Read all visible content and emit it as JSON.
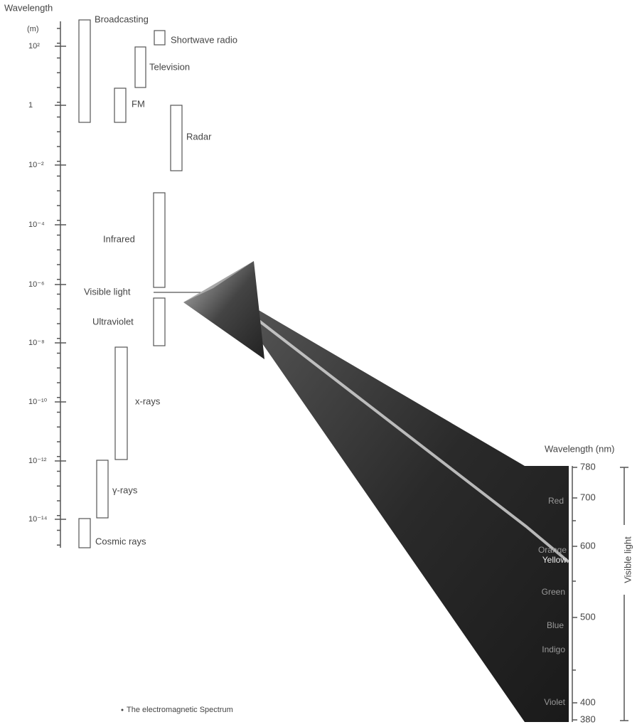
{
  "left_axis": {
    "title": "Wavelength",
    "unit": "(m)",
    "ticks": [
      "10²",
      "1",
      "10⁻²",
      "10⁻⁴",
      "10⁻⁶",
      "10⁻⁸",
      "10⁻¹⁰",
      "10⁻¹²",
      "10⁻¹⁴"
    ]
  },
  "bands": [
    "Broadcasting",
    "Shortwave radio",
    "Television",
    "FM",
    "Radar",
    "Infrared",
    "Visible light",
    "Ultraviolet",
    "x-rays",
    "γ-rays",
    "Cosmic rays"
  ],
  "right_axis": {
    "title": "Wavelength (nm)",
    "ticks": [
      "780",
      "700",
      "600",
      "500",
      "400",
      "380"
    ],
    "bracket_label": "Visible light"
  },
  "colors": [
    "Red",
    "Orange",
    "Yellow",
    "Green",
    "Blue",
    "Indigo",
    "Violet"
  ],
  "caption": "The electromagnetic Spectrum"
}
